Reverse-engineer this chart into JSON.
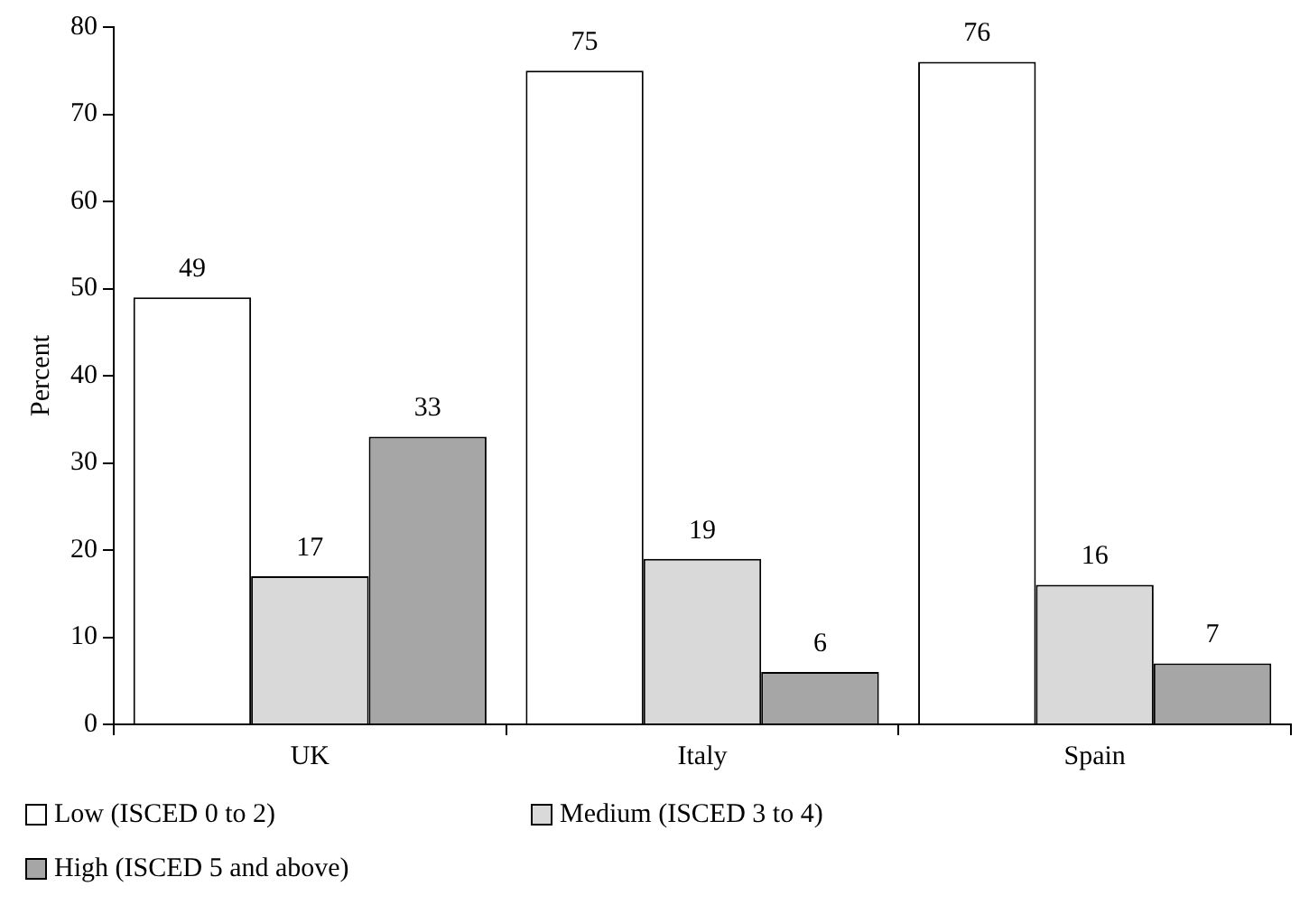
{
  "chart_data": {
    "type": "bar",
    "ylabel": "Percent",
    "categories": [
      "UK",
      "Italy",
      "Spain"
    ],
    "series": [
      {
        "name": "Low (ISCED 0 to 2)",
        "color": "#ffffff",
        "values": [
          49,
          75,
          76
        ]
      },
      {
        "name": "Medium (ISCED 3 to 4)",
        "color": "#d9d9d9",
        "values": [
          17,
          19,
          16
        ]
      },
      {
        "name": "High (ISCED 5 and above)",
        "color": "#a6a6a6",
        "values": [
          33,
          6,
          7
        ]
      }
    ],
    "ylim": [
      0,
      80
    ],
    "yticks": [
      0,
      10,
      20,
      30,
      40,
      50,
      60,
      70,
      80
    ],
    "grid": false,
    "legend": "bottom",
    "data_labels": true
  }
}
